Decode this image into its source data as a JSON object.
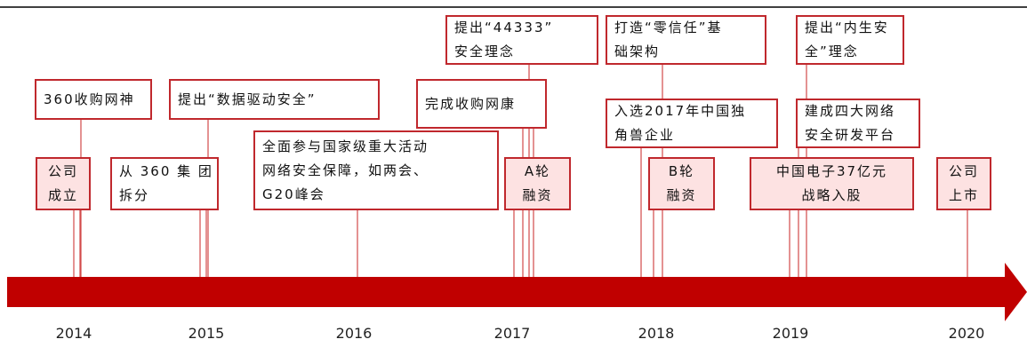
{
  "years": [
    "2014",
    "2015",
    "2016",
    "2017",
    "2018",
    "2019",
    "2020"
  ],
  "events": [
    {
      "lines": [
        "360收购网神"
      ]
    },
    {
      "lines": [
        "公司",
        "成立"
      ]
    },
    {
      "lines": [
        "提出“数据驱动安全”"
      ]
    },
    {
      "lines": [
        "从 360 集 团",
        "拆分"
      ]
    },
    {
      "lines": [
        "全面参与国家级重大活动",
        "网络安全保障，如两会、",
        "G20峰会"
      ]
    },
    {
      "lines": [
        "提出“44333”",
        "安全理念"
      ]
    },
    {
      "lines": [
        "完成收购网康"
      ]
    },
    {
      "lines": [
        "A轮",
        "融资"
      ]
    },
    {
      "lines": [
        "打造“零信任”基",
        "础架构"
      ]
    },
    {
      "lines": [
        "入选2017年中国独",
        "角兽企业"
      ]
    },
    {
      "lines": [
        "B轮",
        "融资"
      ]
    },
    {
      "lines": [
        "提出“内生安",
        "全”理念"
      ]
    },
    {
      "lines": [
        "建成四大网络",
        "安全研发平台"
      ]
    },
    {
      "lines": [
        "中国电子37亿元",
        "战略入股"
      ]
    },
    {
      "lines": [
        "公司",
        "上市"
      ]
    }
  ]
}
